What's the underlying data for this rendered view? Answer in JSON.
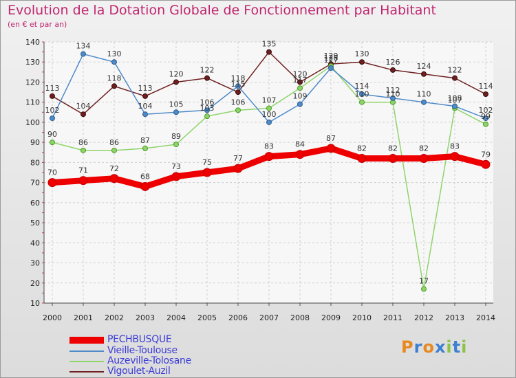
{
  "header": {
    "title": "Evolution de la Dotation Globale de Fonctionnement par Habitant",
    "subtitle": "(en € et par an)"
  },
  "logo": {
    "text": "Proxiti"
  },
  "chart_data": {
    "type": "line",
    "title": "Evolution de la Dotation Globale de Fonctionnement par Habitant",
    "subtitle": "(en € et par an)",
    "x": [
      2000,
      2001,
      2002,
      2003,
      2004,
      2005,
      2006,
      2007,
      2008,
      2009,
      2010,
      2011,
      2012,
      2013,
      2014
    ],
    "ylim": [
      10,
      140
    ],
    "yticks": [
      10,
      20,
      30,
      40,
      50,
      60,
      70,
      80,
      90,
      100,
      110,
      120,
      130,
      140
    ],
    "grid": true,
    "legend": "bottom-left",
    "series": [
      {
        "name": "PECHBUSQUE",
        "color": "#ee0000",
        "values": [
          70,
          71,
          72,
          68,
          73,
          75,
          77,
          83,
          84,
          87,
          82,
          82,
          82,
          83,
          79
        ]
      },
      {
        "name": "Vieille-Toulouse",
        "color": "#4f8ac9",
        "values": [
          102,
          134,
          130,
          104,
          105,
          106,
          118,
          100,
          109,
          127,
          114,
          112,
          110,
          108,
          102
        ]
      },
      {
        "name": "Auzeville-Tolosane",
        "color": "#8fd46b",
        "values": [
          90,
          86,
          86,
          87,
          89,
          103,
          106,
          107,
          117,
          128,
          110,
          110,
          17,
          107,
          99
        ]
      },
      {
        "name": "Vigoulet-Auzil",
        "color": "#6e1f1f",
        "values": [
          113,
          104,
          118,
          113,
          120,
          122,
          115,
          135,
          120,
          129,
          130,
          126,
          124,
          122,
          114
        ]
      }
    ]
  }
}
